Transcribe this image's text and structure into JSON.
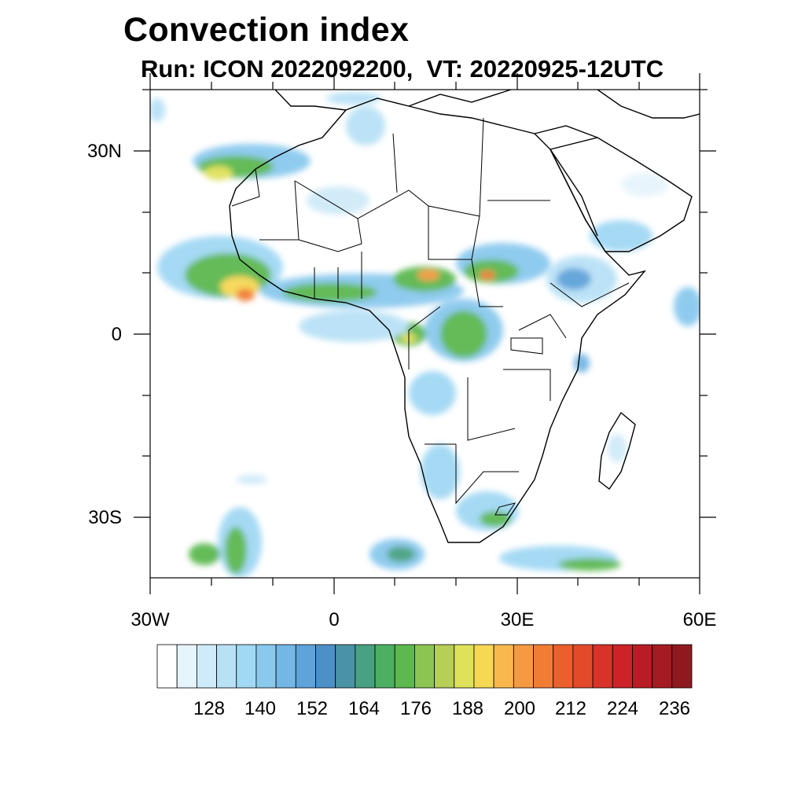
{
  "title": "Convection index",
  "subtitle": "Run: ICON 2022092200,  VT: 20220925-12UTC",
  "axes": {
    "lat_labels": [
      "30N",
      "0",
      "30S"
    ],
    "lon_labels": [
      "30W",
      "0",
      "30E",
      "60E"
    ]
  },
  "colorbar": {
    "labels": [
      "128",
      "140",
      "152",
      "164",
      "176",
      "188",
      "200",
      "212",
      "224",
      "236"
    ],
    "colors": [
      "#ffffff",
      "#e6f4fb",
      "#cfeaf8",
      "#b8e1f6",
      "#a1d8f4",
      "#8ac9ee",
      "#74b6e4",
      "#5ea3da",
      "#4d90c8",
      "#4a93a6",
      "#48a182",
      "#4caf62",
      "#5cb84f",
      "#8dc553",
      "#b6cf55",
      "#dfe15a",
      "#f6d855",
      "#f9b84e",
      "#f69a41",
      "#f17c34",
      "#ec5f2c",
      "#e24a2a",
      "#d93228",
      "#cc2228",
      "#b81d25",
      "#a51b22",
      "#8e1a1f"
    ]
  }
}
